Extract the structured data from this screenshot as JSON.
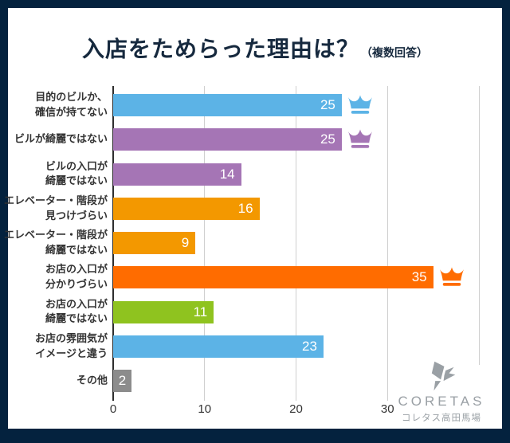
{
  "title": {
    "main": "入店をためらった理由は？",
    "note": "（複数回答）"
  },
  "colors": {
    "frame_border": "#04223E",
    "title_text": "#16293E",
    "label_text": "#333333",
    "grid": "#CFCFCF",
    "axis": "#2E2E2E",
    "logo_gray": "#9AA0A5"
  },
  "chart_data": {
    "type": "bar",
    "orientation": "horizontal",
    "title": "入店をためらった理由は？（複数回答）",
    "xlabel": "",
    "ylabel": "",
    "xlim": [
      0,
      42
    ],
    "x_ticks": [
      "0",
      "10",
      "20",
      "30"
    ],
    "x_tick_values": [
      0,
      10,
      20,
      30
    ],
    "gridline_values": [
      10,
      20,
      30,
      40
    ],
    "grid": true,
    "legend": "none",
    "rows": [
      {
        "label_lines": [
          "目的のビルか、",
          "確信が持てない"
        ],
        "value": 25,
        "color": "#5CB3E6",
        "crown": true
      },
      {
        "label_lines": [
          "ビルが綺麗ではない"
        ],
        "value": 25,
        "color": "#A575B5",
        "crown": true
      },
      {
        "label_lines": [
          "ビルの入口が",
          "綺麗ではない"
        ],
        "value": 14,
        "color": "#A575B5",
        "crown": false
      },
      {
        "label_lines": [
          "エレベーター・階段が",
          "見つけづらい"
        ],
        "value": 16,
        "color": "#F39800",
        "crown": false
      },
      {
        "label_lines": [
          "エレベーター・階段が",
          "綺麗ではない"
        ],
        "value": 9,
        "color": "#F39800",
        "crown": false
      },
      {
        "label_lines": [
          "お店の入口が",
          "分かりづらい"
        ],
        "value": 35,
        "color": "#FF6C00",
        "crown": true
      },
      {
        "label_lines": [
          "お店の入口が",
          "綺麗ではない"
        ],
        "value": 11,
        "color": "#8FC31F",
        "crown": false
      },
      {
        "label_lines": [
          "お店の雰囲気が",
          "イメージと違う"
        ],
        "value": 23,
        "color": "#5CB3E6",
        "crown": false
      },
      {
        "label_lines": [
          "その他"
        ],
        "value": 2,
        "color": "#8C8C8C",
        "crown": false
      }
    ]
  },
  "logo": {
    "name": "CORETAS",
    "subtitle": "コレタス高田馬場"
  }
}
